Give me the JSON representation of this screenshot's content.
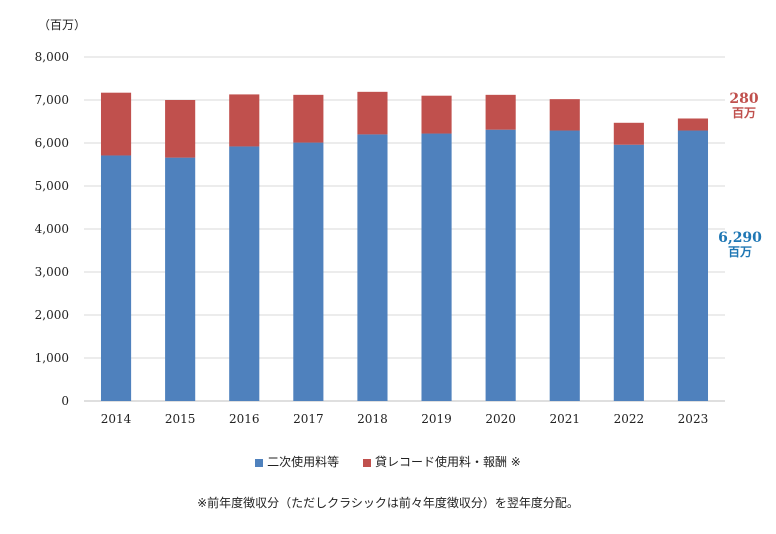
{
  "chart_data": {
    "type": "bar",
    "stacked": true,
    "unit_label": "（百万）",
    "categories": [
      "2014",
      "2015",
      "2016",
      "2017",
      "2018",
      "2019",
      "2020",
      "2021",
      "2022",
      "2023"
    ],
    "series": [
      {
        "name": "二次使用料等",
        "color": "#4f81bd",
        "values": [
          5710,
          5660,
          5920,
          6010,
          6200,
          6220,
          6310,
          6290,
          5960,
          6290
        ]
      },
      {
        "name": "貸レコード使用料・報酬 ※",
        "color": "#c0504d",
        "values": [
          1460,
          1340,
          1210,
          1110,
          990,
          880,
          810,
          730,
          510,
          280
        ]
      }
    ],
    "ylim": [
      0,
      8000
    ],
    "yticks": [
      "0",
      "1,000",
      "2,000",
      "3,000",
      "4,000",
      "5,000",
      "6,000",
      "7,000",
      "8,000"
    ],
    "grid": true,
    "legend_position": "bottom",
    "annotations": {
      "red_value": "280",
      "red_unit": "百万",
      "blue_value": "6,290",
      "blue_unit": "百万"
    },
    "footnote": "※前年度徴収分（ただしクラシックは前々年度徴収分）を翌年度分配。"
  }
}
